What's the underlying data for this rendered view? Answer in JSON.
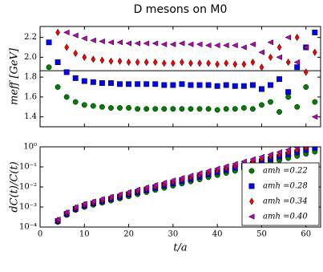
{
  "chart_data": [
    {
      "type": "scatter",
      "title": "D mesons on M0",
      "ylabel": "meff [GeV]",
      "x": [
        2,
        4,
        6,
        8,
        10,
        12,
        14,
        16,
        18,
        20,
        22,
        24,
        26,
        28,
        30,
        32,
        34,
        36,
        38,
        40,
        42,
        44,
        46,
        48,
        50,
        52,
        54,
        56,
        58,
        60,
        62
      ],
      "xlim": [
        0,
        63.3
      ],
      "xticks": [
        0,
        10,
        20,
        30,
        40,
        50,
        60
      ],
      "ylim": [
        1.3,
        2.31
      ],
      "yticks": [
        {
          "value": 1.4,
          "label": "1.4"
        },
        {
          "value": 1.6,
          "label": "1.6"
        },
        {
          "value": 1.8,
          "label": "1.8"
        },
        {
          "value": 2.0,
          "label": "2.0"
        },
        {
          "value": 2.2,
          "label": "2.2"
        }
      ],
      "reference_line": 1.865,
      "series": [
        {
          "name": "amh =0.22",
          "color": "#008000",
          "marker": "circle",
          "values": [
            1.9,
            1.7,
            1.6,
            1.55,
            1.52,
            1.51,
            1.5,
            1.49,
            1.49,
            1.49,
            1.48,
            1.48,
            1.48,
            1.48,
            1.48,
            1.48,
            1.48,
            1.48,
            1.48,
            1.47,
            1.48,
            1.48,
            1.49,
            1.48,
            1.52,
            1.55,
            1.45,
            1.6,
            1.5,
            1.7,
            1.55
          ]
        },
        {
          "name": "amh =0.28",
          "color": "#0000ff",
          "marker": "square",
          "values": [
            2.15,
            1.95,
            1.85,
            1.79,
            1.76,
            1.75,
            1.74,
            1.74,
            1.73,
            1.73,
            1.73,
            1.73,
            1.73,
            1.72,
            1.72,
            1.73,
            1.72,
            1.72,
            1.72,
            1.71,
            1.72,
            1.71,
            1.71,
            1.72,
            1.68,
            1.72,
            1.78,
            1.65,
            1.9,
            2.1,
            2.25
          ]
        },
        {
          "name": "amh =0.34",
          "color": "#ff0000",
          "marker": "diamond",
          "values": [
            null,
            2.25,
            2.1,
            2.04,
            2.0,
            1.98,
            1.97,
            1.96,
            1.96,
            1.95,
            1.95,
            1.95,
            1.95,
            1.94,
            1.94,
            1.95,
            1.94,
            1.94,
            1.94,
            1.93,
            1.94,
            1.93,
            1.93,
            1.95,
            1.9,
            2.0,
            2.1,
            1.95,
            2.2,
            1.85,
            2.05
          ]
        },
        {
          "name": "amh =0.40",
          "color": "#bf00bf",
          "marker": "triangle-left",
          "values": [
            null,
            null,
            2.25,
            2.22,
            2.19,
            2.17,
            2.16,
            2.15,
            2.15,
            2.14,
            2.14,
            2.14,
            2.14,
            2.13,
            2.13,
            2.14,
            2.13,
            2.13,
            2.12,
            2.12,
            2.12,
            2.12,
            2.1,
            2.13,
            2.05,
            2.15,
            2.0,
            2.2,
            1.95,
            2.1,
            1.4
          ]
        }
      ]
    },
    {
      "type": "scatter",
      "ylabel": "dC(t)/C(t)",
      "xlabel": "t/a",
      "log_y": true,
      "legend": "lower right",
      "x": [
        4,
        6,
        8,
        10,
        12,
        14,
        16,
        18,
        20,
        22,
        24,
        26,
        28,
        30,
        32,
        34,
        36,
        38,
        40,
        42,
        44,
        46,
        48,
        50,
        52,
        54,
        56,
        58,
        60,
        62
      ],
      "xlim": [
        0,
        63.3
      ],
      "xticks": [
        0,
        10,
        20,
        30,
        40,
        50,
        60
      ],
      "ylim": [
        0.0001,
        1
      ],
      "yticks": [
        {
          "value": 0.0001,
          "label": "10⁻⁴"
        },
        {
          "value": 0.001,
          "label": "10⁻³"
        },
        {
          "value": 0.01,
          "label": "10⁻²"
        },
        {
          "value": 0.1,
          "label": "10⁻¹"
        },
        {
          "value": 1,
          "label": "10⁰"
        }
      ],
      "series": [
        {
          "name": "amh =0.22",
          "color": "#008000",
          "marker": "circle",
          "values": [
            0.000178,
            0.000398,
            0.000708,
            0.001,
            0.00128,
            0.00163,
            0.00208,
            0.00265,
            0.00339,
            0.00433,
            0.00552,
            0.00705,
            0.00899,
            0.0115,
            0.0147,
            0.0187,
            0.0239,
            0.0305,
            0.0389,
            0.0497,
            0.0634,
            0.0809,
            0.103,
            0.132,
            0.168,
            0.215,
            0.274,
            0.35,
            0.447,
            0.57
          ]
        },
        {
          "name": "amh =0.28",
          "color": "#0000ff",
          "marker": "square",
          "values": [
            0.0002,
            0.000452,
            0.000813,
            0.00116,
            0.0015,
            0.00194,
            0.0025,
            0.00322,
            0.00417,
            0.00539,
            0.00695,
            0.00898,
            0.0116,
            0.015,
            0.0194,
            0.0249,
            0.0322,
            0.0416,
            0.0537,
            0.0694,
            0.0896,
            0.116,
            0.149,
            0.193,
            0.248,
            0.322,
            0.415,
            0.536,
            0.692,
            0.893
          ]
        },
        {
          "name": "amh =0.34",
          "color": "#ff0000",
          "marker": "diamond",
          "values": [
            0.000219,
            0.000499,
            0.000903,
            0.0013,
            0.00169,
            0.0022,
            0.00286,
            0.00371,
            0.00483,
            0.00629,
            0.00816,
            0.0106,
            0.0138,
            0.018,
            0.0234,
            0.0303,
            0.0395,
            0.0513,
            0.0667,
            0.0868,
            0.113,
            0.147,
            0.19,
            0.248,
            0.322,
            0.419,
            0.544,
            0.708,
            0.921,
            null
          ]
        },
        {
          "name": "amh =0.40",
          "color": "#bf00bf",
          "marker": "triangle-left",
          "values": [
            0.00024,
            0.000551,
            0.001,
            0.00146,
            0.00191,
            0.0025,
            0.00327,
            0.00427,
            0.0056,
            0.00733,
            0.00959,
            0.0126,
            0.0164,
            0.0216,
            0.0283,
            0.0369,
            0.0484,
            0.0636,
            0.0828,
            0.108,
            0.142,
            0.186,
            0.244,
            0.319,
            0.416,
            0.546,
            0.714,
            0.935,
            null,
            null
          ]
        }
      ]
    }
  ]
}
